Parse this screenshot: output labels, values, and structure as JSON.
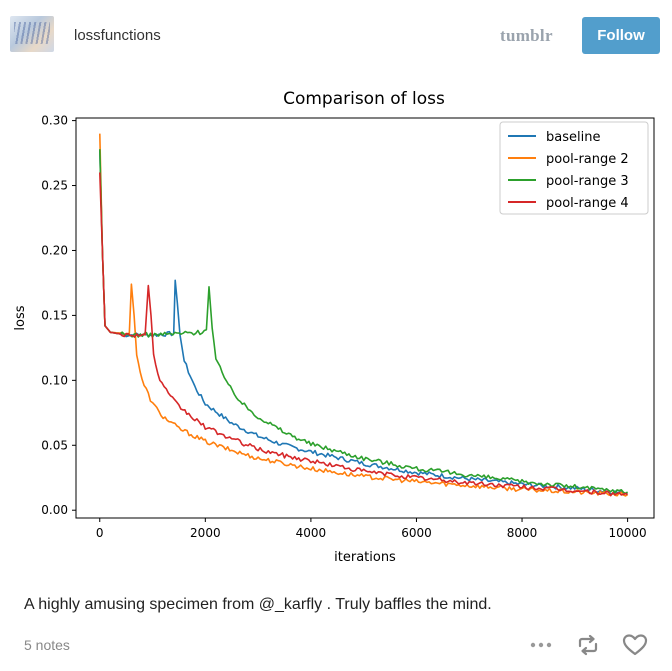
{
  "header": {
    "blog_name": "lossfunctions",
    "platform_logo": "tumblr",
    "follow_label": "Follow",
    "avatar_icon": "blog-avatar-thumbnail"
  },
  "colors": {
    "follow_bg": "#529ecc",
    "baseline": "#1f77b4",
    "pool2": "#ff7f0e",
    "pool3": "#2ca02c",
    "pool4": "#d62728"
  },
  "post": {
    "caption": "A highly amusing specimen from @_karfly . Truly baffles the mind.",
    "notes": "5 notes",
    "action_icons": [
      "more-options-icon",
      "reblog-icon",
      "like-heart-icon"
    ]
  },
  "chart_data": {
    "type": "line",
    "title": "Comparison of loss",
    "xlabel": "iterations",
    "ylabel": "loss",
    "xlim": [
      -450,
      10500
    ],
    "ylim": [
      -0.006,
      0.302
    ],
    "xticks": [
      0,
      2000,
      4000,
      6000,
      8000,
      10000
    ],
    "yticks": [
      0.0,
      0.05,
      0.1,
      0.15,
      0.2,
      0.25,
      0.3
    ],
    "xtick_labels": [
      "0",
      "2000",
      "4000",
      "6000",
      "8000",
      "10000"
    ],
    "ytick_labels": [
      "0.00",
      "0.05",
      "0.10",
      "0.15",
      "0.20",
      "0.25",
      "0.30"
    ],
    "grid": false,
    "legend_position": "top-right",
    "series": [
      {
        "name": "baseline",
        "color": "#1f77b4",
        "x": [
          0,
          50,
          100,
          200,
          500,
          1000,
          1400,
          1430,
          1470,
          1520,
          1600,
          1800,
          2000,
          2500,
          3000,
          3500,
          4000,
          5000,
          6000,
          7000,
          8000,
          9000,
          10000
        ],
        "y": [
          0.277,
          0.2,
          0.142,
          0.137,
          0.135,
          0.135,
          0.136,
          0.177,
          0.16,
          0.135,
          0.115,
          0.095,
          0.082,
          0.067,
          0.057,
          0.05,
          0.045,
          0.036,
          0.029,
          0.024,
          0.02,
          0.017,
          0.013
        ]
      },
      {
        "name": "pool-range 2",
        "color": "#ff7f0e",
        "x": [
          0,
          50,
          100,
          200,
          500,
          560,
          600,
          650,
          700,
          800,
          1000,
          1200,
          1500,
          2000,
          2500,
          3000,
          3500,
          4000,
          5000,
          6000,
          7000,
          8000,
          9000,
          10000
        ],
        "y": [
          0.29,
          0.2,
          0.142,
          0.137,
          0.136,
          0.136,
          0.174,
          0.15,
          0.12,
          0.1,
          0.082,
          0.072,
          0.063,
          0.053,
          0.046,
          0.04,
          0.036,
          0.032,
          0.026,
          0.022,
          0.019,
          0.016,
          0.014,
          0.012
        ]
      },
      {
        "name": "pool-range 3",
        "color": "#2ca02c",
        "x": [
          0,
          50,
          100,
          200,
          500,
          1000,
          1500,
          1900,
          2020,
          2070,
          2130,
          2200,
          2400,
          2700,
          3000,
          3500,
          4000,
          5000,
          6000,
          7000,
          8000,
          9000,
          10000
        ],
        "y": [
          0.278,
          0.2,
          0.142,
          0.137,
          0.135,
          0.135,
          0.136,
          0.137,
          0.139,
          0.172,
          0.14,
          0.118,
          0.098,
          0.082,
          0.072,
          0.06,
          0.051,
          0.04,
          0.032,
          0.027,
          0.022,
          0.018,
          0.014
        ]
      },
      {
        "name": "pool-range 4",
        "color": "#d62728",
        "x": [
          0,
          50,
          100,
          200,
          500,
          860,
          920,
          970,
          1020,
          1100,
          1300,
          1500,
          1800,
          2000,
          2500,
          3000,
          3500,
          4000,
          5000,
          6000,
          7000,
          8000,
          9000,
          10000
        ],
        "y": [
          0.26,
          0.2,
          0.142,
          0.137,
          0.135,
          0.135,
          0.173,
          0.15,
          0.12,
          0.104,
          0.089,
          0.08,
          0.07,
          0.064,
          0.055,
          0.047,
          0.042,
          0.038,
          0.03,
          0.025,
          0.021,
          0.018,
          0.015,
          0.012
        ]
      }
    ]
  }
}
